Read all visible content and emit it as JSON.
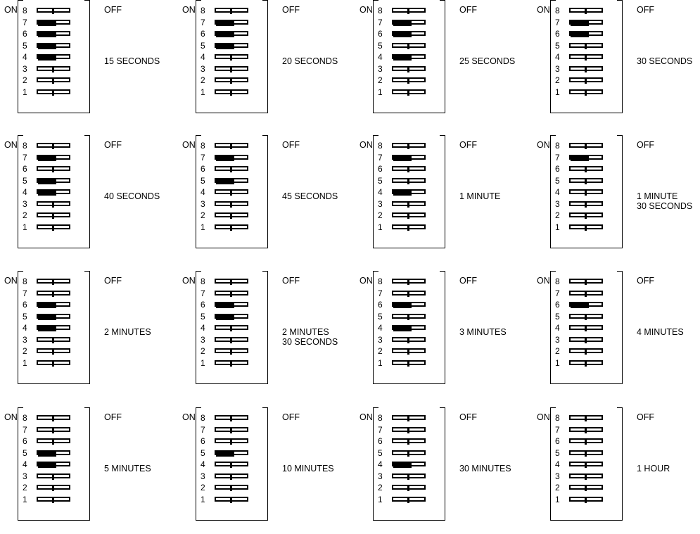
{
  "cells": [
    {
      "on": "ON",
      "off": "OFF",
      "caption": [
        "15 SECONDS"
      ],
      "switches": {
        "8": "off",
        "7": "on",
        "6": "on",
        "5": "on",
        "4": "on",
        "3": "off",
        "2": "off",
        "1": "off"
      }
    },
    {
      "on": "ON",
      "off": "OFF",
      "caption": [
        "20 SECONDS"
      ],
      "switches": {
        "8": "off",
        "7": "on",
        "6": "on",
        "5": "on",
        "4": "off",
        "3": "off",
        "2": "off",
        "1": "off"
      }
    },
    {
      "on": "ON",
      "off": "OFF",
      "caption": [
        "25 SECONDS"
      ],
      "switches": {
        "8": "off",
        "7": "on",
        "6": "on",
        "5": "off",
        "4": "on",
        "3": "off",
        "2": "off",
        "1": "off"
      }
    },
    {
      "on": "ON",
      "off": "OFF",
      "caption": [
        "30 SECONDS"
      ],
      "switches": {
        "8": "off",
        "7": "on",
        "6": "on",
        "5": "off",
        "4": "off",
        "3": "off",
        "2": "off",
        "1": "off"
      }
    },
    {
      "on": "ON",
      "off": "OFF",
      "caption": [
        "40 SECONDS"
      ],
      "switches": {
        "8": "off",
        "7": "on",
        "6": "off",
        "5": "on",
        "4": "on",
        "3": "off",
        "2": "off",
        "1": "off"
      }
    },
    {
      "on": "ON",
      "off": "OFF",
      "caption": [
        "45 SECONDS"
      ],
      "switches": {
        "8": "off",
        "7": "on",
        "6": "off",
        "5": "on",
        "4": "off",
        "3": "off",
        "2": "off",
        "1": "off"
      }
    },
    {
      "on": "ON",
      "off": "OFF",
      "caption": [
        "1 MINUTE"
      ],
      "switches": {
        "8": "off",
        "7": "on",
        "6": "off",
        "5": "off",
        "4": "on",
        "3": "off",
        "2": "off",
        "1": "off"
      }
    },
    {
      "on": "ON",
      "off": "OFF",
      "caption": [
        "1 MINUTE",
        "30 SECONDS"
      ],
      "switches": {
        "8": "off",
        "7": "on",
        "6": "off",
        "5": "off",
        "4": "off",
        "3": "off",
        "2": "off",
        "1": "off"
      }
    },
    {
      "on": "ON",
      "off": "OFF",
      "caption": [
        "2 MINUTES"
      ],
      "switches": {
        "8": "off",
        "7": "off",
        "6": "on",
        "5": "on",
        "4": "on",
        "3": "off",
        "2": "off",
        "1": "off"
      }
    },
    {
      "on": "ON",
      "off": "OFF",
      "caption": [
        "2 MINUTES",
        "30 SECONDS"
      ],
      "switches": {
        "8": "off",
        "7": "off",
        "6": "on",
        "5": "on",
        "4": "off",
        "3": "off",
        "2": "off",
        "1": "off"
      }
    },
    {
      "on": "ON",
      "off": "OFF",
      "caption": [
        "3 MINUTES"
      ],
      "switches": {
        "8": "off",
        "7": "off",
        "6": "on",
        "5": "off",
        "4": "on",
        "3": "off",
        "2": "off",
        "1": "off"
      }
    },
    {
      "on": "ON",
      "off": "OFF",
      "caption": [
        "4 MINUTES"
      ],
      "switches": {
        "8": "off",
        "7": "off",
        "6": "on",
        "5": "off",
        "4": "off",
        "3": "off",
        "2": "off",
        "1": "off"
      }
    },
    {
      "on": "ON",
      "off": "OFF",
      "caption": [
        "5 MINUTES"
      ],
      "switches": {
        "8": "off",
        "7": "off",
        "6": "off",
        "5": "on",
        "4": "on",
        "3": "off",
        "2": "off",
        "1": "off"
      }
    },
    {
      "on": "ON",
      "off": "OFF",
      "caption": [
        "10 MINUTES"
      ],
      "switches": {
        "8": "off",
        "7": "off",
        "6": "off",
        "5": "on",
        "4": "off",
        "3": "off",
        "2": "off",
        "1": "off"
      }
    },
    {
      "on": "ON",
      "off": "OFF",
      "caption": [
        "30 MINUTES"
      ],
      "switches": {
        "8": "off",
        "7": "off",
        "6": "off",
        "5": "off",
        "4": "on",
        "3": "off",
        "2": "off",
        "1": "off"
      }
    },
    {
      "on": "ON",
      "off": "OFF",
      "caption": [
        "1 HOUR"
      ],
      "switches": {
        "8": "off",
        "7": "off",
        "6": "off",
        "5": "off",
        "4": "off",
        "3": "off",
        "2": "off",
        "1": "off"
      }
    }
  ],
  "switch_numbers": [
    "8",
    "7",
    "6",
    "5",
    "4",
    "3",
    "2",
    "1"
  ]
}
